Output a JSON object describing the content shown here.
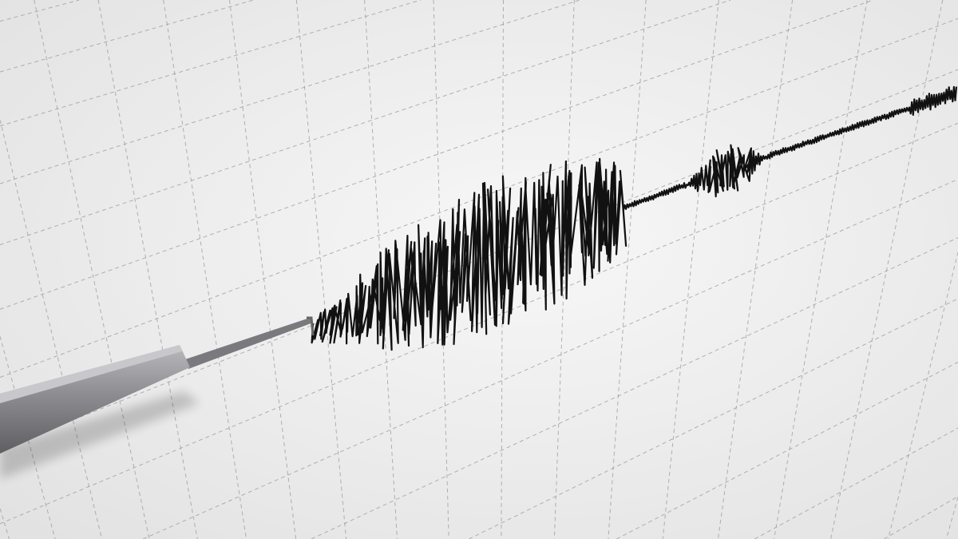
{
  "scene": {
    "subject": "seismograph",
    "colors": {
      "paper": "#f3f3f3",
      "paper_shade": "#e4e4e4",
      "grid": "#9a9a9a",
      "trace": "#111111",
      "stylus_body": "#8d8d92",
      "stylus_highlight": "#b9b9be",
      "stylus_needle": "#777777"
    }
  }
}
